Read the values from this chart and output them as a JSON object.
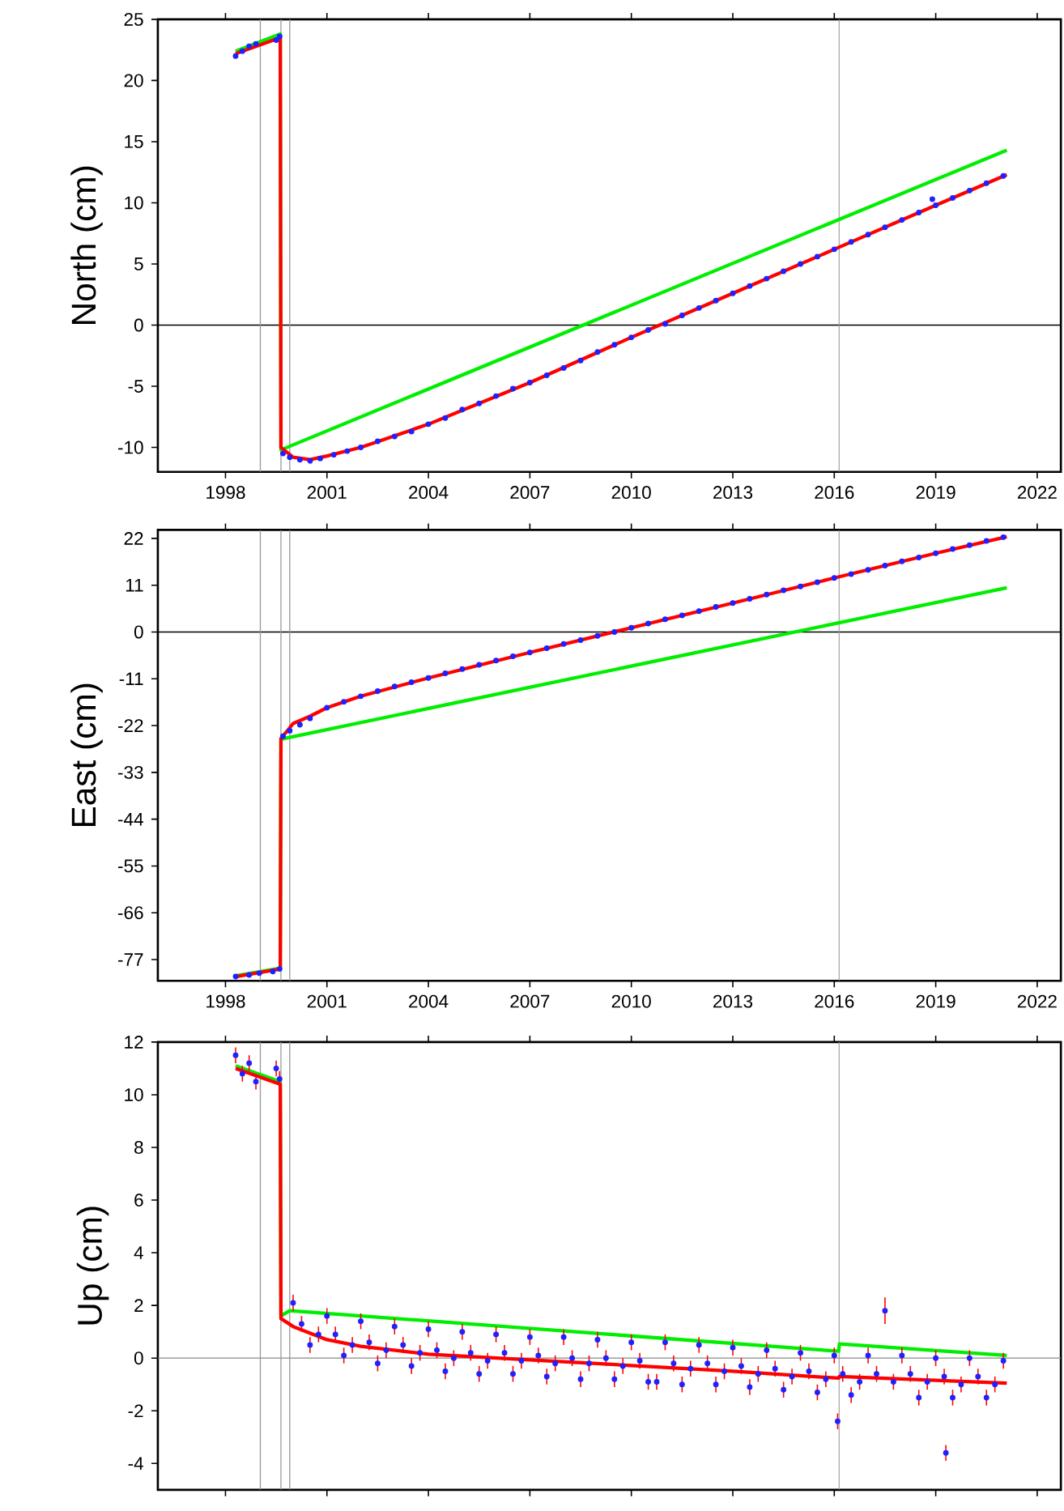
{
  "chart_data": [
    {
      "type": "line",
      "ylabel": "North (cm)",
      "xlim": [
        1996,
        2022.7
      ],
      "ylim": [
        -12,
        25
      ],
      "xticks": [
        1998,
        2001,
        2004,
        2007,
        2010,
        2013,
        2016,
        2019,
        2022
      ],
      "yticks": [
        -10,
        -5,
        0,
        5,
        10,
        15,
        20,
        25
      ],
      "ref_lines": [
        {
          "axis": "y",
          "value": 0,
          "color": "#000000"
        },
        {
          "axis": "x",
          "value": 1999.03,
          "color": "#999999"
        },
        {
          "axis": "x",
          "value": 1999.64,
          "color": "#999999"
        },
        {
          "axis": "x",
          "value": 1999.9,
          "color": "#999999"
        },
        {
          "axis": "x",
          "value": 2016.14,
          "color": "#999999"
        }
      ],
      "series": [
        {
          "type": "scatter",
          "marker": "circle",
          "color": "#2020ff",
          "x": [
            1998.3,
            1998.5,
            1998.7,
            1998.9,
            1999.5,
            1999.6,
            1999.7,
            1999.9,
            2000.2,
            2000.5,
            2000.8,
            2001.2,
            2001.6,
            2002,
            2002.5,
            2003,
            2003.5,
            2004,
            2004.5,
            2005,
            2005.5,
            2006,
            2006.5,
            2007,
            2007.5,
            2008,
            2008.5,
            2009,
            2009.5,
            2010,
            2010.5,
            2011,
            2011.5,
            2012,
            2012.5,
            2013,
            2013.5,
            2014,
            2014.5,
            2015,
            2015.5,
            2016,
            2016.5,
            2017,
            2017.5,
            2018,
            2018.5,
            2018.9,
            2019,
            2019.5,
            2020,
            2020.5,
            2021
          ],
          "values": [
            22.0,
            22.4,
            22.8,
            23.0,
            23.3,
            23.6,
            -10.5,
            -10.8,
            -11.0,
            -11.1,
            -10.9,
            -10.6,
            -10.3,
            -10.0,
            -9.5,
            -9.1,
            -8.7,
            -8.1,
            -7.6,
            -6.9,
            -6.4,
            -5.8,
            -5.2,
            -4.7,
            -4.1,
            -3.5,
            -2.9,
            -2.2,
            -1.6,
            -1.0,
            -0.4,
            0.1,
            0.8,
            1.4,
            2.0,
            2.6,
            3.2,
            3.8,
            4.4,
            5.0,
            5.6,
            6.2,
            6.8,
            7.4,
            8.0,
            8.6,
            9.2,
            10.3,
            9.8,
            10.4,
            11.0,
            11.6,
            12.2
          ]
        },
        {
          "color": "#00ee00",
          "x": [
            1998.3,
            1999.62,
            1999.64,
            2021.1
          ],
          "values": [
            22.4,
            23.8,
            -10.2,
            14.3
          ]
        },
        {
          "color": "#ff0000",
          "x": [
            1998.3,
            1999.62,
            1999.64,
            2000,
            2000.5,
            2001,
            2002,
            2004,
            2007,
            2010,
            2013,
            2016,
            2019,
            2021.1
          ],
          "values": [
            22.2,
            23.5,
            -10.0,
            -10.8,
            -11.0,
            -10.7,
            -10.0,
            -8.1,
            -4.7,
            -1.0,
            2.6,
            6.2,
            9.8,
            12.3
          ]
        }
      ]
    },
    {
      "type": "line",
      "ylabel": "East (cm)",
      "xlim": [
        1996,
        2022.7
      ],
      "ylim": [
        -82,
        24
      ],
      "xticks": [
        1998,
        2001,
        2004,
        2007,
        2010,
        2013,
        2016,
        2019,
        2022
      ],
      "yticks": [
        -77,
        -66,
        -55,
        -44,
        -33,
        -22,
        -11,
        0,
        11,
        22
      ],
      "ref_lines": [
        {
          "axis": "y",
          "value": 0,
          "color": "#000000"
        },
        {
          "axis": "x",
          "value": 1999.03,
          "color": "#999999"
        },
        {
          "axis": "x",
          "value": 1999.64,
          "color": "#999999"
        },
        {
          "axis": "x",
          "value": 1999.9,
          "color": "#999999"
        },
        {
          "axis": "x",
          "value": 2016.14,
          "color": "#999999"
        }
      ],
      "series": [
        {
          "type": "scatter",
          "marker": "circle",
          "color": "#2020ff",
          "x": [
            1998.3,
            1998.7,
            1999.0,
            1999.4,
            1999.6,
            1999.7,
            1999.9,
            2000.2,
            2000.5,
            2001,
            2001.5,
            2002,
            2002.5,
            2003,
            2003.5,
            2004,
            2004.5,
            2005,
            2005.5,
            2006,
            2006.5,
            2007,
            2007.5,
            2008,
            2008.5,
            2009,
            2009.5,
            2010,
            2010.5,
            2011,
            2011.5,
            2012,
            2012.5,
            2013,
            2013.5,
            2014,
            2014.5,
            2015,
            2015.5,
            2016,
            2016.5,
            2017,
            2017.5,
            2018,
            2018.5,
            2019,
            2019.5,
            2020,
            2020.5,
            2021
          ],
          "values": [
            -81.0,
            -80.6,
            -80.2,
            -79.8,
            -79.2,
            -24.5,
            -23.2,
            -21.8,
            -20.3,
            -17.8,
            -16.4,
            -15.1,
            -13.9,
            -12.8,
            -11.8,
            -10.8,
            -9.7,
            -8.7,
            -7.7,
            -6.7,
            -5.7,
            -4.8,
            -3.8,
            -2.8,
            -1.9,
            -0.9,
            0.0,
            1.0,
            2.0,
            3.0,
            3.9,
            4.9,
            5.9,
            6.8,
            7.8,
            8.8,
            9.8,
            10.7,
            11.7,
            12.7,
            13.6,
            14.6,
            15.6,
            16.6,
            17.5,
            18.5,
            19.5,
            20.4,
            21.4,
            22.3
          ]
        },
        {
          "color": "#00ee00",
          "x": [
            1998.3,
            1999.62,
            1999.64,
            2021.1
          ],
          "values": [
            -80.8,
            -79.0,
            -25.2,
            10.4
          ]
        },
        {
          "color": "#ff0000",
          "x": [
            1998.3,
            1999.62,
            1999.64,
            1999.8,
            2000,
            2000.5,
            2001,
            2002,
            2004,
            2007,
            2010,
            2013,
            2016,
            2019,
            2021.1
          ],
          "values": [
            -81.0,
            -79.2,
            -25.0,
            -23.5,
            -21.5,
            -19.8,
            -17.8,
            -15.1,
            -10.8,
            -4.8,
            1.0,
            6.8,
            12.7,
            18.5,
            22.4
          ]
        }
      ]
    },
    {
      "type": "line",
      "ylabel": "Up (cm)",
      "xlim": [
        1996,
        2022.7
      ],
      "ylim": [
        -5,
        12
      ],
      "xticks": [
        1998,
        2001,
        2004,
        2007,
        2010,
        2013,
        2016,
        2019,
        2022
      ],
      "yticks": [
        -4,
        -2,
        0,
        2,
        4,
        6,
        8,
        10,
        12
      ],
      "tick_labels": "y",
      "ref_lines": [
        {
          "axis": "y",
          "value": 0,
          "color": "#888888"
        },
        {
          "axis": "x",
          "value": 1999.03,
          "color": "#999999"
        },
        {
          "axis": "x",
          "value": 1999.64,
          "color": "#999999"
        },
        {
          "axis": "x",
          "value": 1999.9,
          "color": "#999999"
        },
        {
          "axis": "x",
          "value": 2016.14,
          "color": "#999999"
        }
      ],
      "series": [
        {
          "type": "scatter",
          "marker": "circle",
          "color": "#2020ff",
          "x": [
            1998.3,
            1998.5,
            1998.7,
            1998.9,
            1999.5,
            1999.6,
            2000,
            2000.25,
            2000.5,
            2000.75,
            2001,
            2001.25,
            2001.5,
            2001.75,
            2002,
            2002.25,
            2002.5,
            2002.75,
            2003,
            2003.25,
            2003.5,
            2003.75,
            2004,
            2004.25,
            2004.5,
            2004.75,
            2005,
            2005.25,
            2005.5,
            2005.75,
            2006,
            2006.25,
            2006.5,
            2006.75,
            2007,
            2007.25,
            2007.5,
            2007.75,
            2008,
            2008.25,
            2008.5,
            2008.75,
            2009,
            2009.25,
            2009.5,
            2009.75,
            2010,
            2010.25,
            2010.5,
            2010.75,
            2011,
            2011.25,
            2011.5,
            2011.75,
            2012,
            2012.25,
            2012.5,
            2012.75,
            2013,
            2013.25,
            2013.5,
            2013.75,
            2014,
            2014.25,
            2014.5,
            2014.75,
            2015,
            2015.25,
            2015.5,
            2015.75,
            2016,
            2016.1,
            2016.25,
            2016.5,
            2016.75,
            2017,
            2017.25,
            2017.5,
            2017.75,
            2018,
            2018.25,
            2018.5,
            2018.75,
            2019,
            2019.25,
            2019.3,
            2019.5,
            2019.75,
            2020,
            2020.25,
            2020.5,
            2020.75,
            2021
          ],
          "values": [
            11.5,
            10.8,
            11.2,
            10.5,
            11.0,
            10.6,
            2.1,
            1.3,
            0.5,
            0.9,
            1.6,
            0.9,
            0.1,
            0.5,
            1.4,
            0.6,
            -0.2,
            0.3,
            1.2,
            0.5,
            -0.3,
            0.2,
            1.1,
            0.3,
            -0.5,
            0.0,
            1.0,
            0.2,
            -0.6,
            -0.1,
            0.9,
            0.2,
            -0.6,
            -0.1,
            0.8,
            0.1,
            -0.7,
            -0.2,
            0.8,
            0.0,
            -0.8,
            -0.2,
            0.7,
            0.0,
            -0.8,
            -0.3,
            0.6,
            -0.1,
            -0.9,
            -0.9,
            0.6,
            -0.2,
            -1.0,
            -0.4,
            0.5,
            -0.2,
            -1.0,
            -0.5,
            0.4,
            -0.3,
            -1.1,
            -0.6,
            0.3,
            -0.4,
            -1.2,
            -0.7,
            0.2,
            -0.5,
            -1.3,
            -0.8,
            0.1,
            -2.4,
            -0.6,
            -1.4,
            -0.9,
            0.1,
            -0.6,
            1.8,
            -0.9,
            0.1,
            -0.6,
            -1.5,
            -0.9,
            0.0,
            -0.7,
            -3.6,
            -1.5,
            -1.0,
            0.0,
            -0.7,
            -1.5,
            -1.0,
            -0.1
          ],
          "errors": [
            0.3,
            0.3,
            0.3,
            0.3,
            0.3,
            0.3,
            0.3,
            0.3,
            0.3,
            0.3,
            0.3,
            0.3,
            0.3,
            0.3,
            0.3,
            0.3,
            0.3,
            0.3,
            0.3,
            0.3,
            0.3,
            0.3,
            0.3,
            0.3,
            0.3,
            0.3,
            0.3,
            0.3,
            0.3,
            0.3,
            0.3,
            0.3,
            0.3,
            0.3,
            0.3,
            0.3,
            0.3,
            0.3,
            0.3,
            0.3,
            0.3,
            0.3,
            0.3,
            0.3,
            0.3,
            0.3,
            0.3,
            0.3,
            0.3,
            0.3,
            0.3,
            0.3,
            0.3,
            0.3,
            0.3,
            0.3,
            0.3,
            0.3,
            0.3,
            0.3,
            0.3,
            0.3,
            0.3,
            0.3,
            0.3,
            0.3,
            0.3,
            0.3,
            0.3,
            0.3,
            0.3,
            0.3,
            0.3,
            0.3,
            0.3,
            0.3,
            0.3,
            0.5,
            0.3,
            0.3,
            0.3,
            0.3,
            0.3,
            0.3,
            0.3,
            0.3,
            0.3,
            0.3,
            0.3,
            0.3,
            0.3,
            0.3,
            0.3
          ]
        },
        {
          "color": "#00ee00",
          "x": [
            1998.3,
            1999.62,
            1999.64,
            1999.9,
            2016.13,
            2016.15,
            2021.1
          ],
          "values": [
            11.1,
            10.5,
            1.6,
            1.8,
            0.26,
            0.54,
            0.1
          ]
        },
        {
          "color": "#ff0000",
          "x": [
            1998.3,
            1999.62,
            1999.64,
            2000,
            2001,
            2002,
            2004,
            2007,
            2010,
            2013,
            2016.13,
            2016.15,
            2021.1
          ],
          "values": [
            11.0,
            10.4,
            1.5,
            1.2,
            0.7,
            0.45,
            0.15,
            -0.07,
            -0.28,
            -0.5,
            -0.76,
            -0.7,
            -0.95
          ]
        }
      ]
    }
  ]
}
